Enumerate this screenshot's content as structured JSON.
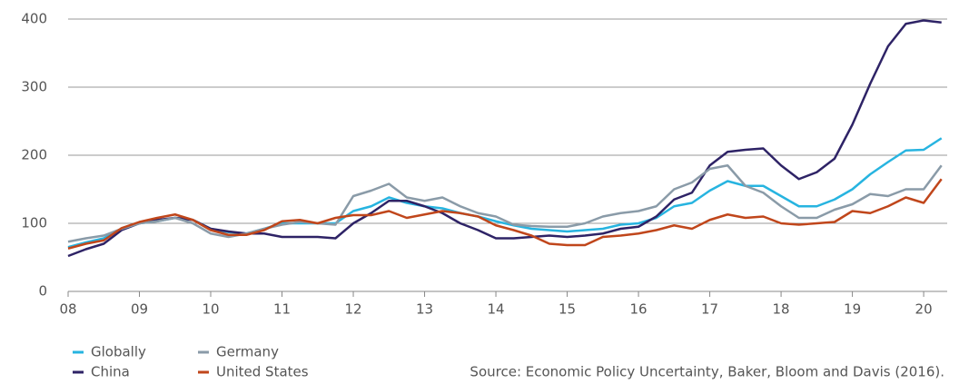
{
  "chart_data": {
    "type": "line",
    "x": [
      2008,
      2008.25,
      2008.5,
      2008.75,
      2009,
      2009.25,
      2009.5,
      2009.75,
      2010,
      2010.25,
      2010.5,
      2010.75,
      2011,
      2011.25,
      2011.5,
      2011.75,
      2012,
      2012.25,
      2012.5,
      2012.75,
      2013,
      2013.25,
      2013.5,
      2013.75,
      2014,
      2014.25,
      2014.5,
      2014.75,
      2015,
      2015.25,
      2015.5,
      2015.75,
      2016,
      2016.25,
      2016.5,
      2016.75,
      2017,
      2017.25,
      2017.5,
      2017.75,
      2018,
      2018.25,
      2018.5,
      2018.75,
      2019,
      2019.25,
      2019.5,
      2019.75,
      2020,
      2020.25
    ],
    "series": [
      {
        "name": "Globally",
        "color": "#27b4e0",
        "values": [
          65,
          72,
          78,
          92,
          100,
          103,
          108,
          105,
          92,
          87,
          85,
          92,
          100,
          100,
          100,
          100,
          118,
          125,
          138,
          130,
          125,
          122,
          115,
          110,
          103,
          97,
          92,
          90,
          88,
          90,
          92,
          98,
          100,
          108,
          125,
          130,
          148,
          162,
          155,
          155,
          140,
          125,
          125,
          135,
          150,
          172,
          190,
          207,
          208,
          225
        ]
      },
      {
        "name": "China",
        "color": "#2e2366",
        "values": [
          52,
          62,
          70,
          90,
          100,
          105,
          108,
          105,
          92,
          88,
          85,
          85,
          80,
          80,
          80,
          78,
          100,
          115,
          133,
          133,
          125,
          115,
          100,
          90,
          78,
          78,
          80,
          82,
          80,
          82,
          85,
          92,
          95,
          110,
          135,
          145,
          185,
          205,
          208,
          210,
          185,
          165,
          175,
          195,
          245,
          305,
          360,
          393,
          398,
          395
        ]
      },
      {
        "name": "Germany",
        "color": "#8a9ba8",
        "values": [
          73,
          78,
          82,
          92,
          100,
          103,
          108,
          100,
          85,
          80,
          85,
          92,
          98,
          102,
          100,
          98,
          140,
          148,
          158,
          138,
          133,
          138,
          125,
          115,
          110,
          98,
          96,
          95,
          95,
          100,
          110,
          115,
          118,
          125,
          150,
          160,
          180,
          185,
          155,
          145,
          125,
          108,
          108,
          120,
          128,
          143,
          140,
          150,
          150,
          185
        ]
      },
      {
        "name": "United States",
        "color": "#c0461b",
        "values": [
          63,
          70,
          75,
          93,
          102,
          108,
          113,
          105,
          90,
          83,
          83,
          90,
          103,
          105,
          100,
          108,
          112,
          112,
          118,
          108,
          113,
          118,
          115,
          110,
          97,
          90,
          82,
          70,
          68,
          68,
          80,
          82,
          85,
          90,
          97,
          92,
          105,
          113,
          108,
          110,
          100,
          98,
          100,
          102,
          118,
          115,
          125,
          138,
          130,
          165
        ]
      }
    ],
    "xlim": [
      2008,
      2020.33
    ],
    "xticks": [
      {
        "value": 2008,
        "label": "08"
      },
      {
        "value": 2009,
        "label": "09"
      },
      {
        "value": 2010,
        "label": "10"
      },
      {
        "value": 2011,
        "label": "11"
      },
      {
        "value": 2012,
        "label": "12"
      },
      {
        "value": 2013,
        "label": "13"
      },
      {
        "value": 2014,
        "label": "14"
      },
      {
        "value": 2015,
        "label": "15"
      },
      {
        "value": 2016,
        "label": "16"
      },
      {
        "value": 2017,
        "label": "17"
      },
      {
        "value": 2018,
        "label": "18"
      },
      {
        "value": 2019,
        "label": "19"
      },
      {
        "value": 2020,
        "label": "20"
      }
    ],
    "ylim": [
      0,
      400
    ],
    "yticks": [
      0,
      100,
      200,
      300,
      400
    ],
    "grid": true,
    "source": "Source: Economic Policy Uncertainty, Baker, Bloom and Davis (2016)."
  }
}
